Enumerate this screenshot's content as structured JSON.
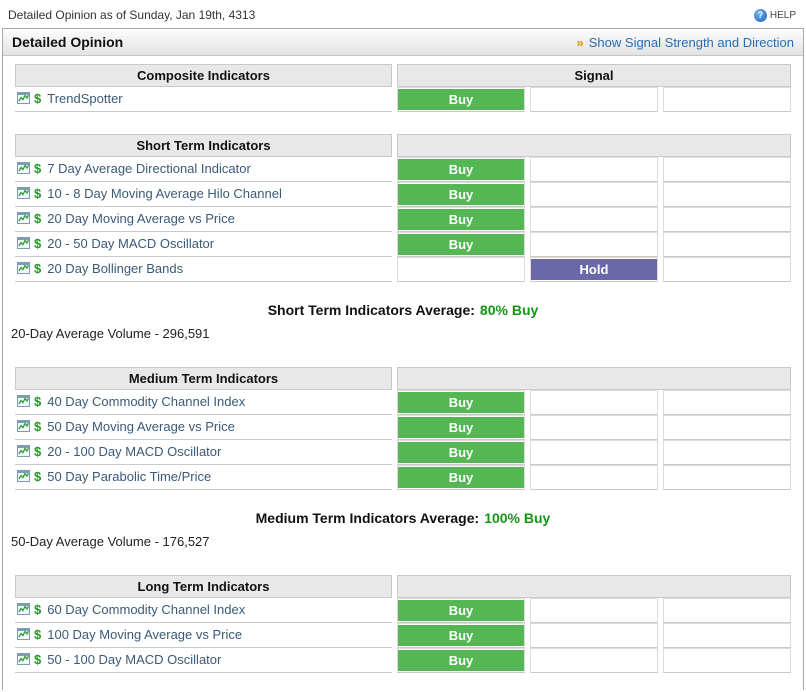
{
  "top": {
    "title": "Detailed Opinion as of Sunday, Jan 19th, 4313",
    "help_label": "HELP",
    "help_icon_glyph": "?"
  },
  "panel": {
    "title": "Detailed Opinion",
    "link_chevron": "»",
    "link_label": "Show Signal Strength and Direction"
  },
  "colors": {
    "buy": "#54b754",
    "hold": "#6a68a6",
    "average_value": "#149614",
    "link": "#2a6db2",
    "chevron": "#e69500"
  },
  "icons": {
    "chart": "chart-icon",
    "dollar_glyph": "$",
    "help": "question-icon"
  },
  "sections": [
    {
      "header": "Composite Indicators",
      "signal_header": "Signal",
      "rows": [
        {
          "name": "TrendSpotter",
          "signal": "Buy",
          "type": "buy",
          "column": 1
        }
      ]
    },
    {
      "header": "Short Term Indicators",
      "signal_header": "",
      "rows": [
        {
          "name": "7 Day Average Directional Indicator",
          "signal": "Buy",
          "type": "buy",
          "column": 1
        },
        {
          "name": "10 - 8 Day Moving Average Hilo Channel",
          "signal": "Buy",
          "type": "buy",
          "column": 1
        },
        {
          "name": "20 Day Moving Average vs Price",
          "signal": "Buy",
          "type": "buy",
          "column": 1
        },
        {
          "name": "20 - 50 Day MACD Oscillator",
          "signal": "Buy",
          "type": "buy",
          "column": 1
        },
        {
          "name": "20 Day Bollinger Bands",
          "signal": "Hold",
          "type": "hold",
          "column": 2
        }
      ],
      "average_label": "Short Term Indicators Average:",
      "average_value": "80% Buy",
      "volume_text": "20-Day Average Volume - 296,591"
    },
    {
      "header": "Medium Term Indicators",
      "signal_header": "",
      "rows": [
        {
          "name": "40 Day Commodity Channel Index",
          "signal": "Buy",
          "type": "buy",
          "column": 1
        },
        {
          "name": "50 Day Moving Average vs Price",
          "signal": "Buy",
          "type": "buy",
          "column": 1
        },
        {
          "name": "20 - 100 Day MACD Oscillator",
          "signal": "Buy",
          "type": "buy",
          "column": 1
        },
        {
          "name": "50 Day Parabolic Time/Price",
          "signal": "Buy",
          "type": "buy",
          "column": 1
        }
      ],
      "average_label": "Medium Term Indicators Average:",
      "average_value": "100% Buy",
      "volume_text": "50-Day Average Volume - 176,527"
    },
    {
      "header": "Long Term Indicators",
      "signal_header": "",
      "rows": [
        {
          "name": "60 Day Commodity Channel Index",
          "signal": "Buy",
          "type": "buy",
          "column": 1
        },
        {
          "name": "100 Day Moving Average vs Price",
          "signal": "Buy",
          "type": "buy",
          "column": 1
        },
        {
          "name": "50 - 100 Day MACD Oscillator",
          "signal": "Buy",
          "type": "buy",
          "column": 1
        }
      ]
    }
  ]
}
